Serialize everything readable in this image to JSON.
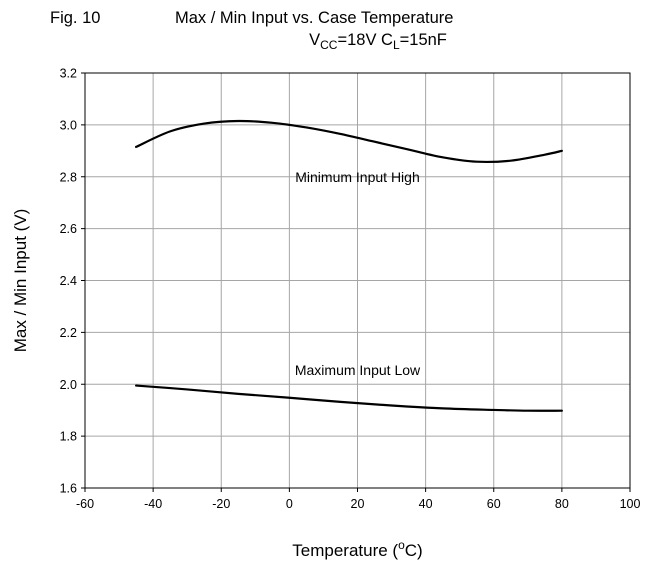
{
  "chart_data": {
    "type": "line",
    "figure_label": "Fig. 10",
    "title": "Max / Min Input vs. Case Temperature",
    "subtitle": {
      "parts": [
        {
          "text": "V",
          "sub": false
        },
        {
          "text": "CC",
          "sub": true
        },
        {
          "text": "=18V C",
          "sub": false
        },
        {
          "text": "L",
          "sub": true
        },
        {
          "text": "=15nF",
          "sub": false
        }
      ]
    },
    "xlabel": {
      "parts": [
        {
          "text": "Temperature (",
          "sup": false
        },
        {
          "text": "o",
          "sup": true
        },
        {
          "text": "C)",
          "sup": false
        }
      ]
    },
    "ylabel": "Max / Min Input (V)",
    "xlim": [
      -60,
      100
    ],
    "ylim": [
      1.6,
      3.2
    ],
    "xticks": [
      -60,
      -40,
      -20,
      0,
      20,
      40,
      60,
      80,
      100
    ],
    "yticks": [
      1.6,
      1.8,
      2.0,
      2.2,
      2.4,
      2.6,
      2.8,
      3.0,
      3.2
    ],
    "grid": true,
    "series": [
      {
        "name": "Minimum Input High",
        "x": [
          -45,
          -35,
          -25,
          -15,
          -5,
          5,
          15,
          25,
          35,
          45,
          55,
          65,
          75,
          80
        ],
        "y": [
          2.915,
          2.975,
          3.005,
          3.015,
          3.008,
          2.99,
          2.965,
          2.935,
          2.905,
          2.875,
          2.858,
          2.862,
          2.885,
          2.9
        ]
      },
      {
        "name": "Maximum Input Low",
        "x": [
          -45,
          -30,
          -15,
          0,
          15,
          30,
          45,
          60,
          70,
          80
        ],
        "y": [
          1.995,
          1.98,
          1.963,
          1.948,
          1.932,
          1.918,
          1.907,
          1.901,
          1.898,
          1.898
        ]
      }
    ],
    "annotations": [
      {
        "text": "Minimum Input High",
        "x": 20,
        "y": 2.78
      },
      {
        "text": "Maximum Input Low",
        "x": 20,
        "y": 2.035
      }
    ]
  }
}
